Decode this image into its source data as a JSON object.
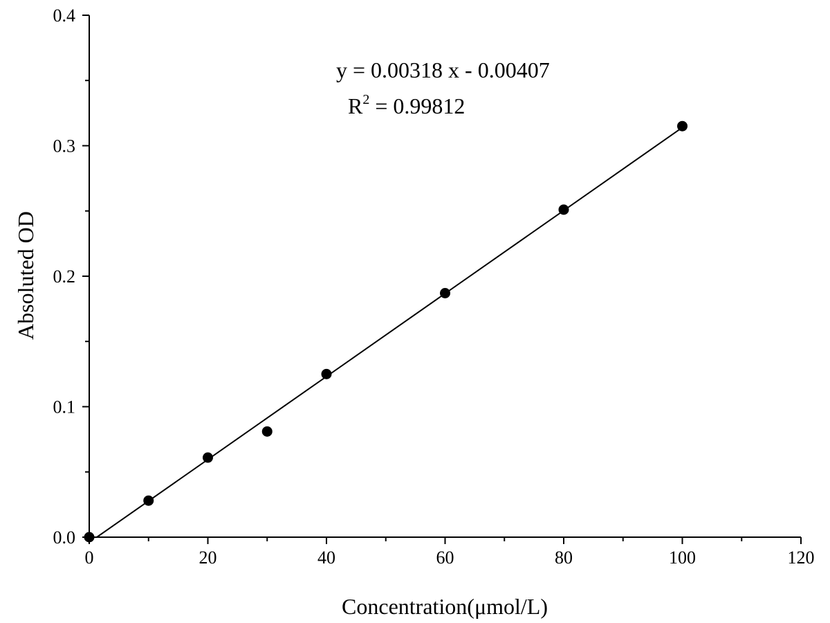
{
  "chart_data": {
    "type": "scatter",
    "title": "",
    "xlabel": "Concentration(μmol/L)",
    "ylabel": "Absoluted OD",
    "xlim": [
      0,
      120
    ],
    "ylim": [
      0,
      0.4
    ],
    "x_major_ticks": [
      0,
      20,
      40,
      60,
      80,
      100,
      120
    ],
    "x_tick_labels": [
      "0",
      "20",
      "40",
      "60",
      "80",
      "100",
      "120"
    ],
    "x_minor_ticks": [
      10,
      30,
      50,
      70,
      90,
      110
    ],
    "y_major_ticks": [
      0,
      0.1,
      0.2,
      0.3,
      0.4
    ],
    "y_tick_labels": [
      "0.0",
      "0.1",
      "0.2",
      "0.3",
      "0.4"
    ],
    "y_minor_ticks": [
      0.05,
      0.15,
      0.25,
      0.35
    ],
    "grid": false,
    "legend": "none",
    "marker_color": "#000000",
    "series": [
      {
        "x": [
          0,
          10,
          20,
          30,
          40,
          60,
          80,
          100
        ],
        "y": [
          0.0,
          0.028,
          0.061,
          0.081,
          0.125,
          0.187,
          0.251,
          0.315
        ]
      }
    ],
    "fit": {
      "slope": 0.00318,
      "intercept": -0.00407,
      "x_range": [
        1.28,
        100
      ]
    },
    "annotations": {
      "equation": "y = 0.00318 x - 0.00407",
      "r2_prefix": "R",
      "r2_exponent": "2",
      "r2_value": " = 0.99812"
    }
  }
}
